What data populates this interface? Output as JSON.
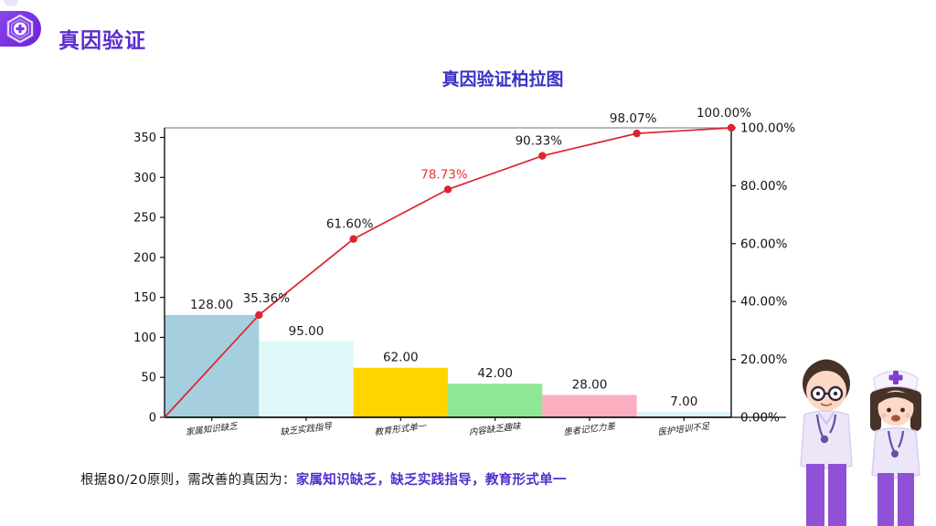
{
  "header": {
    "title": "真因验证"
  },
  "theme": {
    "header_title_color": "#5b2bd0",
    "chart_title_color": "#3832c6",
    "footnote_highlight_color": "#5330cb"
  },
  "chart_data": {
    "type": "pareto (bar + cumulative line)",
    "title": "真因验证柏拉图",
    "categories": [
      "家属知识缺乏",
      "缺乏实践指导",
      "教育形式单一",
      "内容缺乏趣味",
      "患者记忆力差",
      "医护培训不足"
    ],
    "values": [
      128,
      95,
      62,
      42,
      28,
      7
    ],
    "value_labels": [
      "128.00",
      "95.00",
      "62.00",
      "42.00",
      "28.00",
      "7.00"
    ],
    "cumulative_percent": [
      35.36,
      61.6,
      78.73,
      90.33,
      98.07,
      100.0
    ],
    "cumulative_labels": [
      "35.36%",
      "61.60%",
      "78.73%",
      "90.33%",
      "98.07%",
      "100.00%"
    ],
    "highlight_index": 2,
    "highlight_color": "#e8322d",
    "line_color": "#dc2531",
    "bar_colors": [
      "#a5cede",
      "#dff8f8",
      "#ffd400",
      "#90e793",
      "#fbaec0",
      "#d9f3f8"
    ],
    "left_axis": {
      "ticks": [
        0,
        50,
        100,
        150,
        200,
        250,
        300,
        350
      ],
      "min": 0
    },
    "right_axis": {
      "values": [
        0,
        20,
        40,
        60,
        80,
        100
      ],
      "ticks": [
        "0.00%",
        "20.00%",
        "40.00%",
        "60.00%",
        "80.00%",
        "100.00%"
      ]
    },
    "grid": "off",
    "legend": "none"
  },
  "footnote": {
    "prefix": "根据80/20原则，需改善的真因为：",
    "highlight": "家属知识缺乏，缺乏实践指导，教育形式单一"
  },
  "illustration": {
    "name": "doctor-and-nurse-figures"
  }
}
